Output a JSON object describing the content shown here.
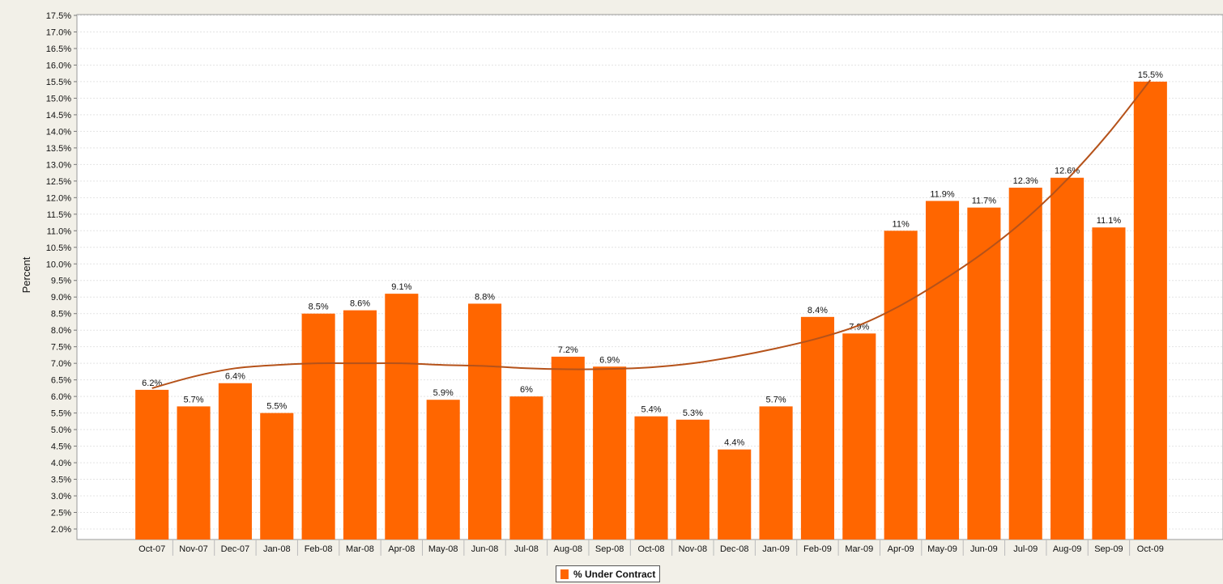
{
  "colors": {
    "bar": "#ff6600",
    "trend": "#b5521a",
    "plot_bg": "#ffffff",
    "page_bg": "#f2f0e8",
    "grid": "#e4e4e4"
  },
  "chart_data": {
    "type": "bar",
    "title": "",
    "xlabel": "",
    "ylabel": "Percent",
    "ylim": [
      2.0,
      17.5
    ],
    "ytick_step": 0.5,
    "grid": true,
    "legend_position": "bottom-center",
    "categories": [
      "Oct-07",
      "Nov-07",
      "Dec-07",
      "Jan-08",
      "Feb-08",
      "Mar-08",
      "Apr-08",
      "May-08",
      "Jun-08",
      "Jul-08",
      "Aug-08",
      "Sep-08",
      "Oct-08",
      "Nov-08",
      "Dec-08",
      "Jan-09",
      "Feb-09",
      "Mar-09",
      "Apr-09",
      "May-09",
      "Jun-09",
      "Jul-09",
      "Aug-09",
      "Sep-09",
      "Oct-09"
    ],
    "series": [
      {
        "name": "% Under Contract",
        "values": [
          6.2,
          5.7,
          6.4,
          5.5,
          8.5,
          8.6,
          9.1,
          5.9,
          8.8,
          6.0,
          7.2,
          6.9,
          5.4,
          5.3,
          4.4,
          5.7,
          8.4,
          7.9,
          11.0,
          11.9,
          11.7,
          12.3,
          12.6,
          11.1,
          15.5
        ],
        "data_labels": [
          "6.2%",
          "5.7%",
          "6.4%",
          "5.5%",
          "8.5%",
          "8.6%",
          "9.1%",
          "5.9%",
          "8.8%",
          "6%",
          "7.2%",
          "6.9%",
          "5.4%",
          "5.3%",
          "4.4%",
          "5.7%",
          "8.4%",
          "7.9%",
          "11%",
          "11.9%",
          "11.7%",
          "12.3%",
          "12.6%",
          "11.1%",
          "15.5%"
        ]
      }
    ],
    "trendline": {
      "values": [
        6.25,
        6.6,
        6.85,
        6.95,
        7.0,
        7.0,
        7.0,
        6.95,
        6.92,
        6.85,
        6.82,
        6.83,
        6.88,
        7.0,
        7.2,
        7.45,
        7.75,
        8.15,
        8.75,
        9.5,
        10.35,
        11.35,
        12.55,
        13.95,
        15.55
      ]
    }
  }
}
